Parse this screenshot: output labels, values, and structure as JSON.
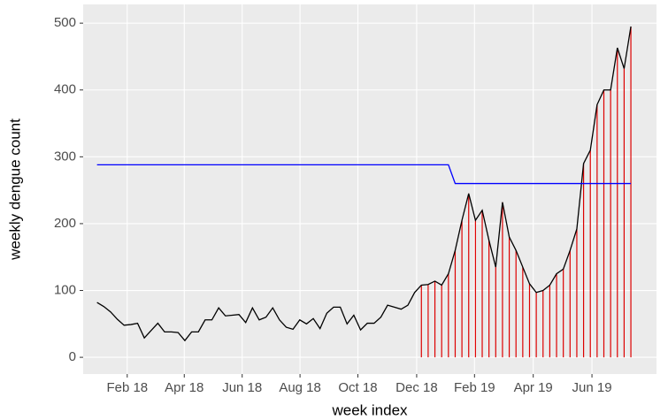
{
  "chart_data": {
    "type": "line",
    "x_label": "week index",
    "y_label": "weekly dengue count",
    "x": [
      1,
      2,
      3,
      4,
      5,
      6,
      7,
      8,
      9,
      10,
      11,
      12,
      13,
      14,
      15,
      16,
      17,
      18,
      19,
      20,
      21,
      22,
      23,
      24,
      25,
      26,
      27,
      28,
      29,
      30,
      31,
      32,
      33,
      34,
      35,
      36,
      37,
      38,
      39,
      40,
      41,
      42,
      43,
      44,
      45,
      46,
      47,
      48,
      49,
      50,
      51,
      52,
      53,
      54,
      55,
      56,
      57,
      58,
      59,
      60,
      61,
      62,
      63,
      64,
      65,
      66,
      67,
      68,
      69,
      70,
      71,
      72,
      73,
      74,
      75,
      76,
      77,
      78,
      79,
      80
    ],
    "series": [
      {
        "color": "#000000",
        "values": [
          82,
          76,
          68,
          57,
          48,
          49,
          51,
          29,
          40,
          51,
          38,
          38,
          37,
          25,
          38,
          38,
          56,
          56,
          74,
          62,
          63,
          64,
          52,
          74,
          56,
          60,
          74,
          56,
          45,
          42,
          56,
          50,
          58,
          43,
          66,
          75,
          75,
          50,
          63,
          41,
          51,
          51,
          60,
          78,
          75,
          72,
          78,
          97,
          108,
          109,
          114,
          108,
          125,
          160,
          205,
          245,
          205,
          220,
          175,
          135,
          232,
          180,
          160,
          135,
          110,
          97,
          100,
          108,
          125,
          132,
          160,
          192,
          290,
          310,
          378,
          400,
          400,
          463,
          432,
          495
        ]
      },
      {
        "color": "#0000ff",
        "values": [
          288,
          288,
          288,
          288,
          288,
          288,
          288,
          288,
          288,
          288,
          288,
          288,
          288,
          288,
          288,
          288,
          288,
          288,
          288,
          288,
          288,
          288,
          288,
          288,
          288,
          288,
          288,
          288,
          288,
          288,
          288,
          288,
          288,
          288,
          288,
          288,
          288,
          288,
          288,
          288,
          288,
          288,
          288,
          288,
          288,
          288,
          288,
          288,
          288,
          288,
          288,
          288,
          288,
          260,
          260,
          260,
          260,
          260,
          260,
          260,
          260,
          260,
          260,
          260,
          260,
          260,
          260,
          260,
          260,
          260,
          260,
          260,
          260,
          260,
          260,
          260,
          260,
          260,
          260,
          260
        ]
      }
    ],
    "highlight": {
      "color": "#dd0000",
      "from_x": 49,
      "series": 0
    },
    "xlim": [
      -1.05,
      83.79
    ],
    "xticks": [
      {
        "value": 5.47,
        "label": "Feb 18"
      },
      {
        "value": 13.91,
        "label": "Apr 18"
      },
      {
        "value": 22.48,
        "label": "Jun 18"
      },
      {
        "value": 31.04,
        "label": "Aug 18"
      },
      {
        "value": 39.6,
        "label": "Oct 18"
      },
      {
        "value": 48.3,
        "label": "Dec 18"
      },
      {
        "value": 56.86,
        "label": "Feb 19"
      },
      {
        "value": 65.55,
        "label": "Apr 19"
      },
      {
        "value": 74.24,
        "label": "Jun 19"
      }
    ],
    "ylim": [
      -25,
      528
    ],
    "yticks": [
      0,
      100,
      200,
      300,
      400,
      500
    ],
    "grid": true
  }
}
